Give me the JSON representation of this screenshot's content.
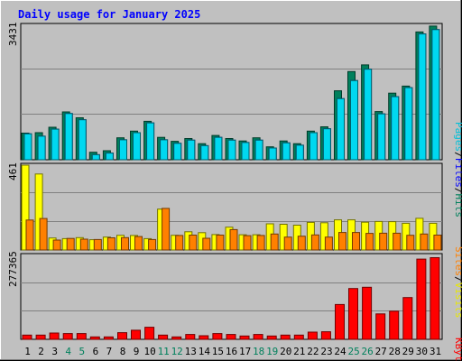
{
  "chart_data": {
    "type": "bar",
    "title": "Daily usage for January 2025",
    "categories": [
      "1",
      "2",
      "3",
      "4",
      "5",
      "6",
      "7",
      "8",
      "9",
      "10",
      "11",
      "12",
      "13",
      "14",
      "15",
      "16",
      "17",
      "18",
      "19",
      "20",
      "21",
      "22",
      "23",
      "24",
      "25",
      "26",
      "27",
      "28",
      "29",
      "30",
      "31"
    ],
    "weekend_days": [
      "4",
      "5",
      "11",
      "12",
      "18",
      "19",
      "25",
      "26"
    ],
    "hits_panel": {
      "max_label": "3431",
      "ylim": [
        0,
        3431
      ],
      "series": [
        {
          "name": "Hits",
          "color": "#00805c",
          "values": [
            680,
            690,
            830,
            1220,
            1070,
            190,
            230,
            560,
            730,
            980,
            570,
            470,
            540,
            410,
            620,
            540,
            480,
            560,
            330,
            480,
            410,
            730,
            840,
            1760,
            2250,
            2420,
            1230,
            1700,
            1880,
            3260,
            3410
          ]
        },
        {
          "name": "Files",
          "color": "#0000ff",
          "values": [
            660,
            600,
            780,
            1180,
            1020,
            130,
            170,
            510,
            690,
            940,
            510,
            420,
            500,
            360,
            570,
            500,
            440,
            500,
            300,
            430,
            370,
            690,
            790,
            1560,
            2020,
            2310,
            1170,
            1610,
            1840,
            3210,
            3320
          ]
        },
        {
          "name": "Pages",
          "color": "#00d8f0",
          "values": [
            660,
            600,
            780,
            1180,
            1020,
            130,
            170,
            510,
            690,
            940,
            510,
            420,
            500,
            360,
            570,
            500,
            440,
            500,
            300,
            430,
            370,
            690,
            790,
            1560,
            2020,
            2310,
            1170,
            1610,
            1840,
            3210,
            3320
          ]
        }
      ]
    },
    "visits_panel": {
      "max_label": "461",
      "ylim": [
        0,
        461
      ],
      "series": [
        {
          "name": "Visits",
          "color": "#ffff00",
          "values": [
            461,
            413,
            65,
            62,
            67,
            56,
            70,
            80,
            79,
            62,
            222,
            80,
            99,
            94,
            84,
            124,
            83,
            83,
            142,
            140,
            135,
            150,
            148,
            164,
            164,
            151,
            155,
            154,
            145,
            172,
            145
          ]
        },
        {
          "name": "Sites",
          "color": "#ff8000",
          "values": [
            163,
            171,
            54,
            63,
            59,
            57,
            66,
            67,
            73,
            57,
            226,
            79,
            81,
            64,
            81,
            111,
            78,
            79,
            87,
            70,
            75,
            82,
            70,
            95,
            95,
            90,
            91,
            91,
            80,
            87,
            81
          ]
        }
      ]
    },
    "kbytes_panel": {
      "max_label": "277365",
      "ylim": [
        0,
        277365
      ],
      "series": [
        {
          "name": "KBytes",
          "color": "#ff0000",
          "values": [
            14000,
            14000,
            21000,
            19000,
            19000,
            8000,
            8000,
            22000,
            30000,
            40000,
            14000,
            8000,
            16000,
            12000,
            19000,
            16000,
            11000,
            16000,
            11000,
            14000,
            14000,
            24000,
            25000,
            115000,
            168000,
            172000,
            84000,
            93000,
            138000,
            265000,
            270000
          ]
        }
      ]
    },
    "legends": {
      "hits": {
        "pages": "Pages",
        "sep1": "/",
        "files": "Files",
        "sep2": "/",
        "hits": "Hits"
      },
      "visits": {
        "sites": "Sites",
        "sep": "/",
        "visits": "Visits"
      },
      "kbytes": {
        "kbytes": "KBytes"
      }
    },
    "colors": {
      "background": "#c0c0c0",
      "title": "#0000ff",
      "weekday_label": "#000000",
      "weekend_label": "#00805c",
      "separator": "#000000"
    }
  }
}
